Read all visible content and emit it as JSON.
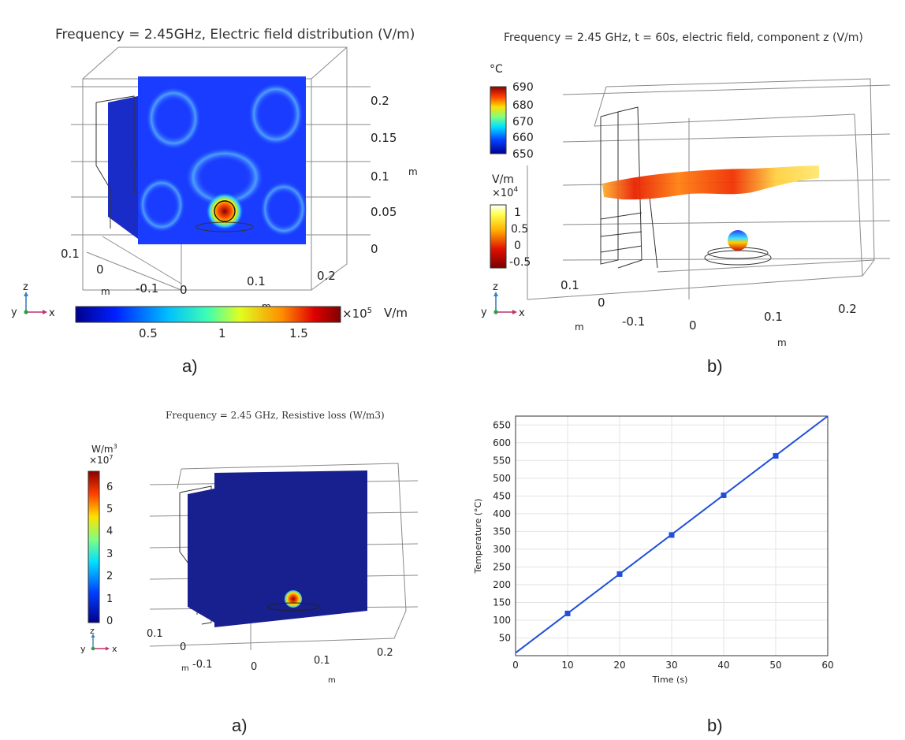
{
  "panel_a": {
    "title": "Frequency = 2.45GHz, Electric field distribution (V/m)",
    "z_ticks": [
      "0.2",
      "0.15",
      "0.1",
      "0.05",
      "0"
    ],
    "z_unit": "m",
    "y_ticks": [
      "0.1",
      "0",
      "-0.1"
    ],
    "y_unit": "m",
    "x_ticks": [
      "0",
      "0.1",
      "0.2"
    ],
    "x_unit": "m",
    "colorbar_ticks": [
      "0.5",
      "1",
      "1.5"
    ],
    "colorbar_exp": "×10",
    "colorbar_exp_power": "5",
    "colorbar_unit": "V/m",
    "sublabel": "a)"
  },
  "panel_b": {
    "title": "Frequency = 2.45 GHz, t = 60s, electric field,  component z (V/m)",
    "temp_unit": "°C",
    "temp_ticks": [
      "690",
      "680",
      "670",
      "660",
      "650"
    ],
    "field_unit": "V/m",
    "field_exp": "×10",
    "field_exp_power": "4",
    "field_ticks": [
      "1",
      "0.5",
      "0",
      "-0.5"
    ],
    "y_ticks": [
      "0.1",
      "0",
      "-0.1"
    ],
    "y_unit": "m",
    "x_ticks": [
      "0",
      "0.1",
      "0.2"
    ],
    "x_unit": "m",
    "sublabel": "b)"
  },
  "panel_c": {
    "title": "Frequency = 2.45 GHz, Resistive loss (W/m3)",
    "colorbar_unit": "W/m",
    "colorbar_unit_power": "3",
    "colorbar_exp": "×10",
    "colorbar_exp_power": "7",
    "colorbar_ticks": [
      "6",
      "5",
      "4",
      "3",
      "2",
      "1",
      "0"
    ],
    "y_ticks": [
      "0.1",
      "0",
      "-0.1"
    ],
    "y_unit": "m",
    "x_ticks": [
      "0",
      "0.1",
      "0.2"
    ],
    "x_unit": "m",
    "sublabel": "a)"
  },
  "panel_d": {
    "sublabel": "b)"
  },
  "triad": {
    "z": "z",
    "y": "y",
    "x": "x"
  },
  "chart_data": {
    "type": "line",
    "title": "",
    "xlabel": "Time (s)",
    "ylabel": "Temperature (°C)",
    "xlim": [
      0,
      60
    ],
    "ylim": [
      0,
      675
    ],
    "x_ticks": [
      0,
      10,
      20,
      30,
      40,
      50,
      60
    ],
    "y_ticks": [
      50,
      100,
      150,
      200,
      250,
      300,
      350,
      400,
      450,
      500,
      550,
      600,
      650
    ],
    "grid": true,
    "series": [
      {
        "name": "Temperature",
        "line": {
          "x": [
            0,
            60
          ],
          "y": [
            8,
            675
          ]
        },
        "markers": {
          "x": [
            10,
            20,
            30,
            40,
            50
          ],
          "y": [
            119,
            230,
            340,
            452,
            563
          ]
        }
      }
    ],
    "color": "#1f4fd8"
  }
}
